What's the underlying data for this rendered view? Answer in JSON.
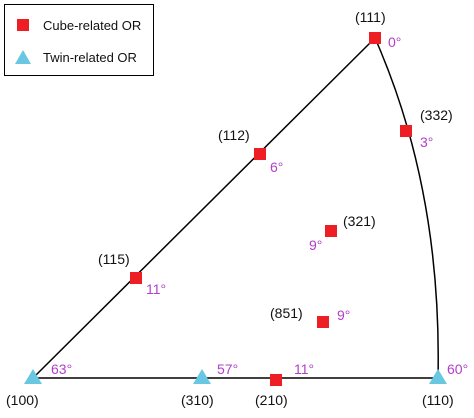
{
  "colors": {
    "cube": "#ee1f24",
    "twin": "#6ac7e1",
    "angle_text": "#b040c8",
    "label_text": "#111111",
    "line": "#000000"
  },
  "legend": {
    "cube_label": "Cube-related OR",
    "twin_label": "Twin-related OR",
    "cube_icon": "red-square-marker",
    "twin_icon": "blue-triangle-marker"
  },
  "points": {
    "p111": {
      "label": "(111)",
      "angle": "0°",
      "type": "cube"
    },
    "p332": {
      "label": "(332)",
      "angle": "3°",
      "type": "cube"
    },
    "p112": {
      "label": "(112)",
      "angle": "6°",
      "type": "cube"
    },
    "p321": {
      "label": "(321)",
      "angle": "9°",
      "type": "cube"
    },
    "p115": {
      "label": "(115)",
      "angle": "11°",
      "type": "cube"
    },
    "p851": {
      "label": "(851)",
      "angle": "9°",
      "type": "cube"
    },
    "p210": {
      "label": "(210)",
      "angle": "11°",
      "type": "cube"
    },
    "p100": {
      "label": "(100)",
      "angle": "63°",
      "type": "twin"
    },
    "p310": {
      "label": "(310)",
      "angle": "57°",
      "type": "twin"
    },
    "p110": {
      "label": "(110)",
      "angle": "60°",
      "type": "twin"
    }
  }
}
